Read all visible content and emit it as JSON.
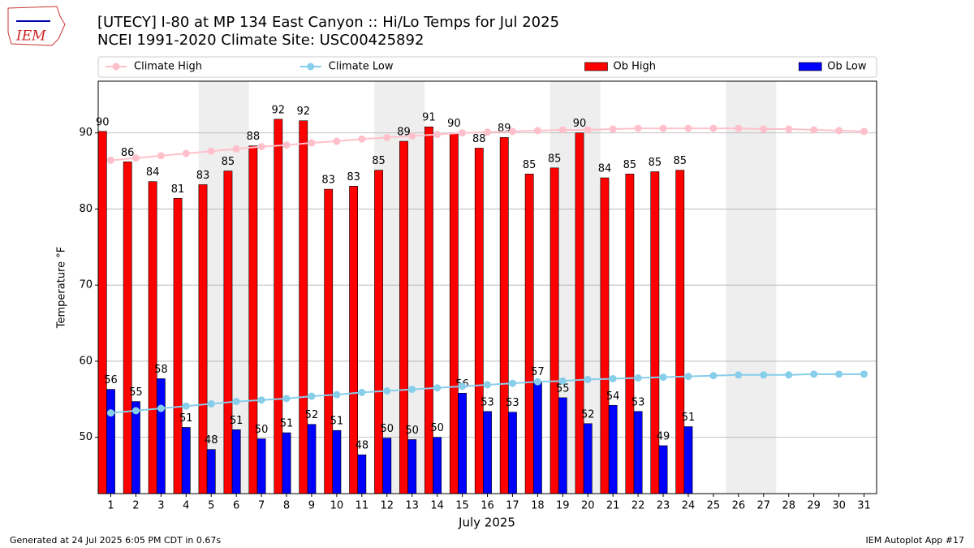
{
  "chart_data": {
    "type": "bar",
    "title": "[UTECY] I-80 at MP 134 East Canyon  :: Hi/Lo Temps for Jul 2025",
    "subtitle": "NCEI 1991-2020 Climate Site: USC00425892",
    "logo_text": "IEM",
    "x_label": "July 2025",
    "y_label": "Temperature °F",
    "footer_left": "Generated at 24 Jul 2025 6:05 PM CDT in 0.67s",
    "footer_right": "IEM Autoplot App #17",
    "x": [
      1,
      2,
      3,
      4,
      5,
      6,
      7,
      8,
      9,
      10,
      11,
      12,
      13,
      14,
      15,
      16,
      17,
      18,
      19,
      20,
      21,
      22,
      23,
      24,
      25,
      26,
      27,
      28,
      29,
      30,
      31
    ],
    "xlim": [
      0.5,
      31.5
    ],
    "xticks": [
      1,
      2,
      3,
      4,
      5,
      6,
      7,
      8,
      9,
      10,
      11,
      12,
      13,
      14,
      15,
      16,
      17,
      18,
      19,
      20,
      21,
      22,
      23,
      24,
      25,
      26,
      27,
      28,
      29,
      30,
      31
    ],
    "ylim": [
      42.6,
      96.8
    ],
    "yticks": [
      50,
      60,
      70,
      80,
      90
    ],
    "grid": true,
    "legend": "top",
    "shaded_days": [
      5,
      6,
      12,
      13,
      19,
      20,
      26,
      27
    ],
    "shade_color": "#eeeeee",
    "series": [
      {
        "name": "Climate High",
        "type": "line",
        "color": "#ffc0cb",
        "values": [
          86.4,
          86.7,
          87.0,
          87.3,
          87.6,
          87.9,
          88.2,
          88.4,
          88.7,
          88.9,
          89.2,
          89.4,
          89.6,
          89.8,
          90.0,
          90.1,
          90.2,
          90.3,
          90.4,
          90.4,
          90.5,
          90.6,
          90.6,
          90.6,
          90.6,
          90.6,
          90.5,
          90.5,
          90.4,
          90.3,
          90.2
        ]
      },
      {
        "name": "Climate Low",
        "type": "line",
        "color": "#87ceeb",
        "values": [
          53.2,
          53.5,
          53.8,
          54.1,
          54.4,
          54.7,
          54.9,
          55.1,
          55.4,
          55.6,
          55.9,
          56.1,
          56.3,
          56.5,
          56.7,
          56.9,
          57.1,
          57.3,
          57.4,
          57.6,
          57.7,
          57.8,
          57.9,
          58.0,
          58.1,
          58.2,
          58.2,
          58.2,
          58.3,
          58.3,
          58.3
        ]
      },
      {
        "name": "Ob High",
        "type": "bar",
        "color": "#ff0000",
        "offset": -0.33,
        "values": [
          90.2,
          86.2,
          83.6,
          81.4,
          83.2,
          85.0,
          88.3,
          91.8,
          91.6,
          82.6,
          83.0,
          85.1,
          88.9,
          90.8,
          90.0,
          88.0,
          89.4,
          84.6,
          85.4,
          90.0,
          84.1,
          84.6,
          84.9,
          85.1,
          null,
          null,
          null,
          null,
          null,
          null,
          null
        ],
        "value_labels": [
          "90",
          "86",
          "84",
          "81",
          "83",
          "85",
          "88",
          "92",
          "92",
          "83",
          "83",
          "85",
          "89",
          "91",
          "90",
          "88",
          "89",
          "85",
          "85",
          "90",
          "84",
          "85",
          "85",
          "85",
          null,
          null,
          null,
          null,
          null,
          null,
          null
        ]
      },
      {
        "name": "Ob Low",
        "type": "bar",
        "color": "#0000ff",
        "offset": 0,
        "values": [
          56.3,
          54.7,
          57.7,
          51.3,
          48.4,
          51.0,
          49.8,
          50.6,
          51.7,
          50.9,
          47.7,
          49.9,
          49.7,
          50.0,
          55.8,
          53.4,
          53.3,
          57.4,
          55.2,
          51.8,
          54.2,
          53.4,
          48.9,
          51.4,
          null,
          null,
          null,
          null,
          null,
          null,
          null
        ],
        "value_labels": [
          "56",
          "55",
          "58",
          "51",
          "48",
          "51",
          "50",
          "51",
          "52",
          "51",
          "48",
          "50",
          "50",
          "50",
          "56",
          "53",
          "53",
          "57",
          "55",
          "52",
          "54",
          "53",
          "49",
          "51",
          null,
          null,
          null,
          null,
          null,
          null,
          null
        ]
      }
    ]
  }
}
